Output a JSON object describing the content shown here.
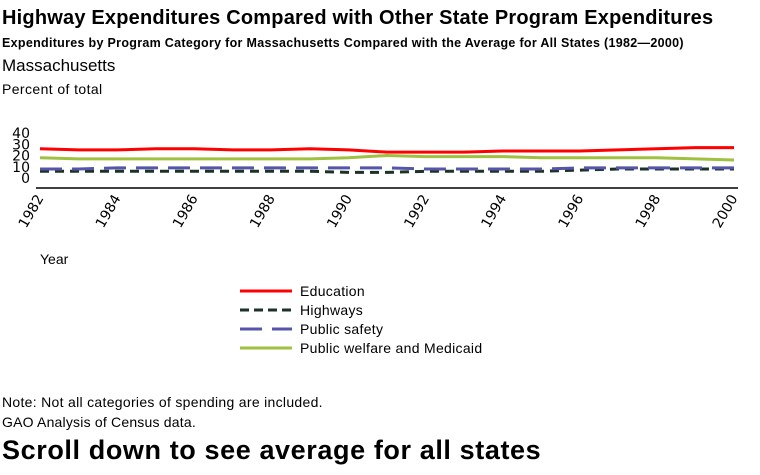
{
  "page": {
    "title": "Highway Expenditures Compared with Other State Program Expenditures",
    "subtitle": "Expenditures by Program Category for Massachusetts Compared with the Average for All States (1982—2000)",
    "state": "Massachusetts",
    "note": "Note: Not all categories of spending are included.",
    "source": "GAO Analysis of Census data.",
    "scroll_prompt": "Scroll down to see average for all states"
  },
  "chart_data": {
    "type": "line",
    "title": "Massachusetts",
    "xlabel": "Year",
    "ylabel": "Percent of total",
    "ylim": [
      0,
      40
    ],
    "xlim": [
      1982,
      2000
    ],
    "yticks": [
      "0",
      "10",
      "20",
      "30",
      "40"
    ],
    "xticks": [
      "1982",
      "1984",
      "1986",
      "1988",
      "1990",
      "1992",
      "1994",
      "1996",
      "1998",
      "2000"
    ],
    "grid": false,
    "legend_position": "bottom-center",
    "x": [
      1982,
      1983,
      1984,
      1985,
      1986,
      1987,
      1988,
      1989,
      1990,
      1991,
      1992,
      1993,
      1994,
      1995,
      1996,
      1997,
      1998,
      1999,
      2000
    ],
    "series": [
      {
        "name": "Education",
        "color": "#ff0000",
        "dash": "solid",
        "values": [
          26,
          25,
          25,
          26,
          26,
          25,
          25,
          26,
          25,
          23,
          23,
          23,
          24,
          24,
          24,
          25,
          26,
          27,
          27
        ]
      },
      {
        "name": "Highways",
        "color": "#1a3326",
        "dash": "short-dash",
        "values": [
          6,
          6,
          6,
          6,
          6,
          6,
          6,
          6,
          5,
          5,
          6,
          6,
          6,
          6,
          7,
          8,
          8,
          8,
          8
        ]
      },
      {
        "name": "Public safety",
        "color": "#5555aa",
        "dash": "long-dash",
        "values": [
          8,
          8,
          9,
          9,
          9,
          9,
          9,
          9,
          9,
          9,
          8,
          8,
          8,
          8,
          9,
          9,
          9,
          9,
          9
        ]
      },
      {
        "name": "Public welfare and Medicaid",
        "color": "#a0c040",
        "dash": "solid",
        "values": [
          18,
          17,
          17,
          17,
          17,
          17,
          17,
          17,
          18,
          20,
          19,
          19,
          19,
          18,
          18,
          18,
          18,
          17,
          16
        ]
      }
    ]
  }
}
